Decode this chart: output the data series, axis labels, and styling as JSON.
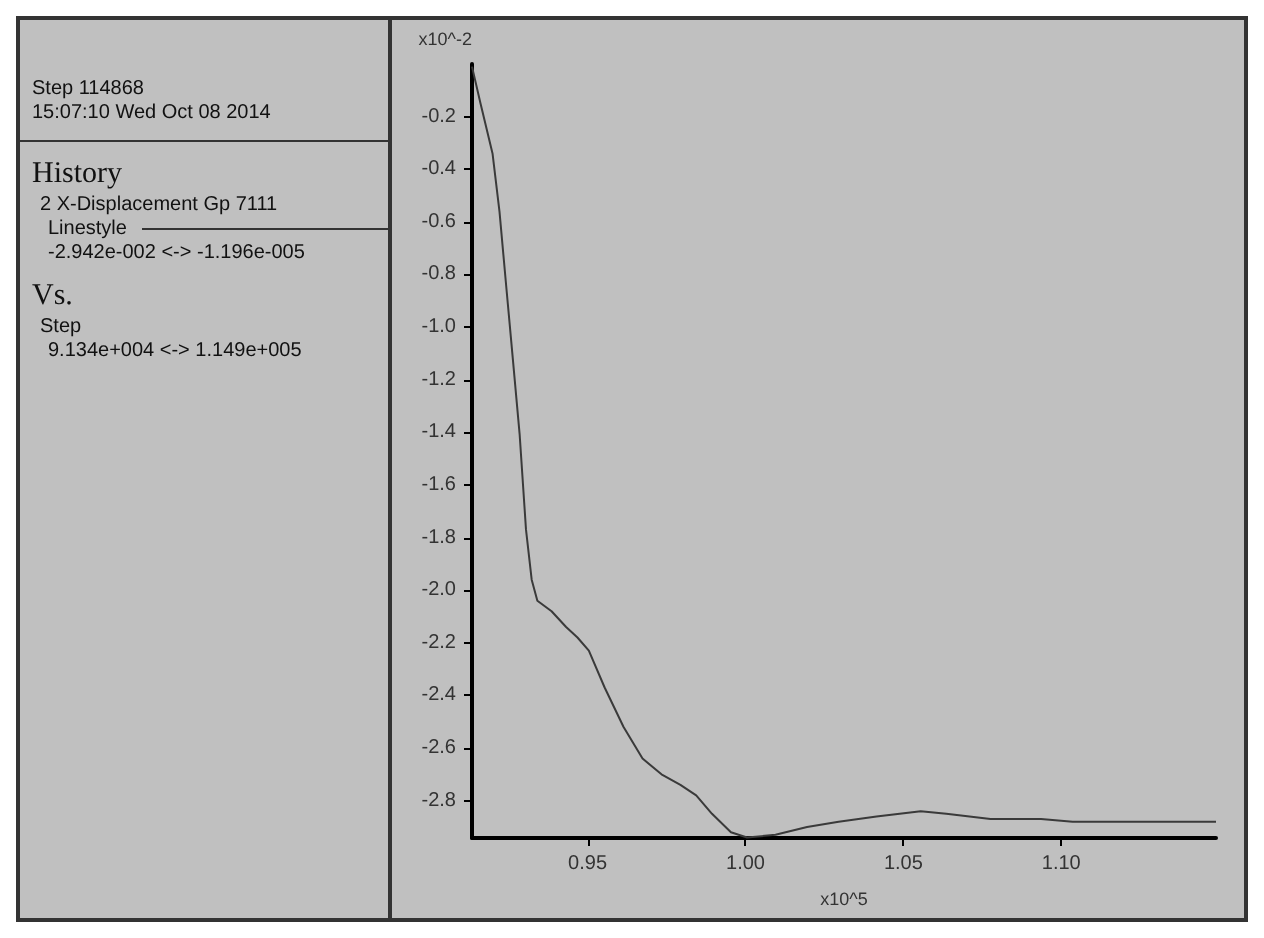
{
  "chart_data": {
    "type": "line",
    "annotations": [
      "Step 114868",
      "15:07:10 Wed Oct 08 2014",
      "History",
      "2 X-Displacement Gp 7111",
      "Linestyle",
      "-2.942e-002 <-> -1.196e-005",
      "Vs.",
      "Step",
      "9.134e+004 <-> 1.149e+005"
    ],
    "xlabel": "x10^5",
    "ylabel": "x10^-2",
    "x": [
      0.9134,
      0.9161,
      0.9199,
      0.9221,
      0.9242,
      0.9264,
      0.9285,
      0.9305,
      0.9323,
      0.9341,
      0.9386,
      0.9432,
      0.9468,
      0.9504,
      0.9554,
      0.9614,
      0.9674,
      0.9734,
      0.9794,
      0.9844,
      0.9894,
      0.9954,
      1.0005,
      1.0095,
      1.0195,
      1.0295,
      1.0415,
      1.0555,
      1.0636,
      1.0776,
      1.0936,
      1.1036,
      1.149
    ],
    "series": [
      {
        "color": "#3a3a3a",
        "values": [
          -0.01,
          -0.15,
          -0.34,
          -0.56,
          -0.84,
          -1.13,
          -1.41,
          -1.77,
          -1.96,
          -2.04,
          -2.08,
          -2.14,
          -2.18,
          -2.23,
          -2.37,
          -2.52,
          -2.64,
          -2.7,
          -2.74,
          -2.78,
          -2.85,
          -2.92,
          -2.94,
          -2.93,
          -2.9,
          -2.88,
          -2.86,
          -2.84,
          -2.85,
          -2.87,
          -2.87,
          -2.88,
          -2.88
        ]
      }
    ],
    "xlim": [
      0.9134,
      1.149
    ],
    "xticks": [
      0.95,
      {
        "value": 1.0,
        "label": "1.00"
      },
      1.05,
      {
        "value": 1.1,
        "label": "1.10"
      }
    ],
    "ylim": [
      -2.942,
      0
    ],
    "yticks": [
      -0.2,
      -0.4,
      -0.6,
      -0.8,
      {
        "value": -1.0,
        "label": "-1.0"
      },
      -1.2,
      -1.4,
      -1.6,
      -1.8,
      {
        "value": -2.0,
        "label": "-2.0"
      },
      -2.2,
      -2.4,
      -2.6,
      -2.8
    ],
    "grid": false,
    "marker": "none",
    "line_style": "solid"
  }
}
